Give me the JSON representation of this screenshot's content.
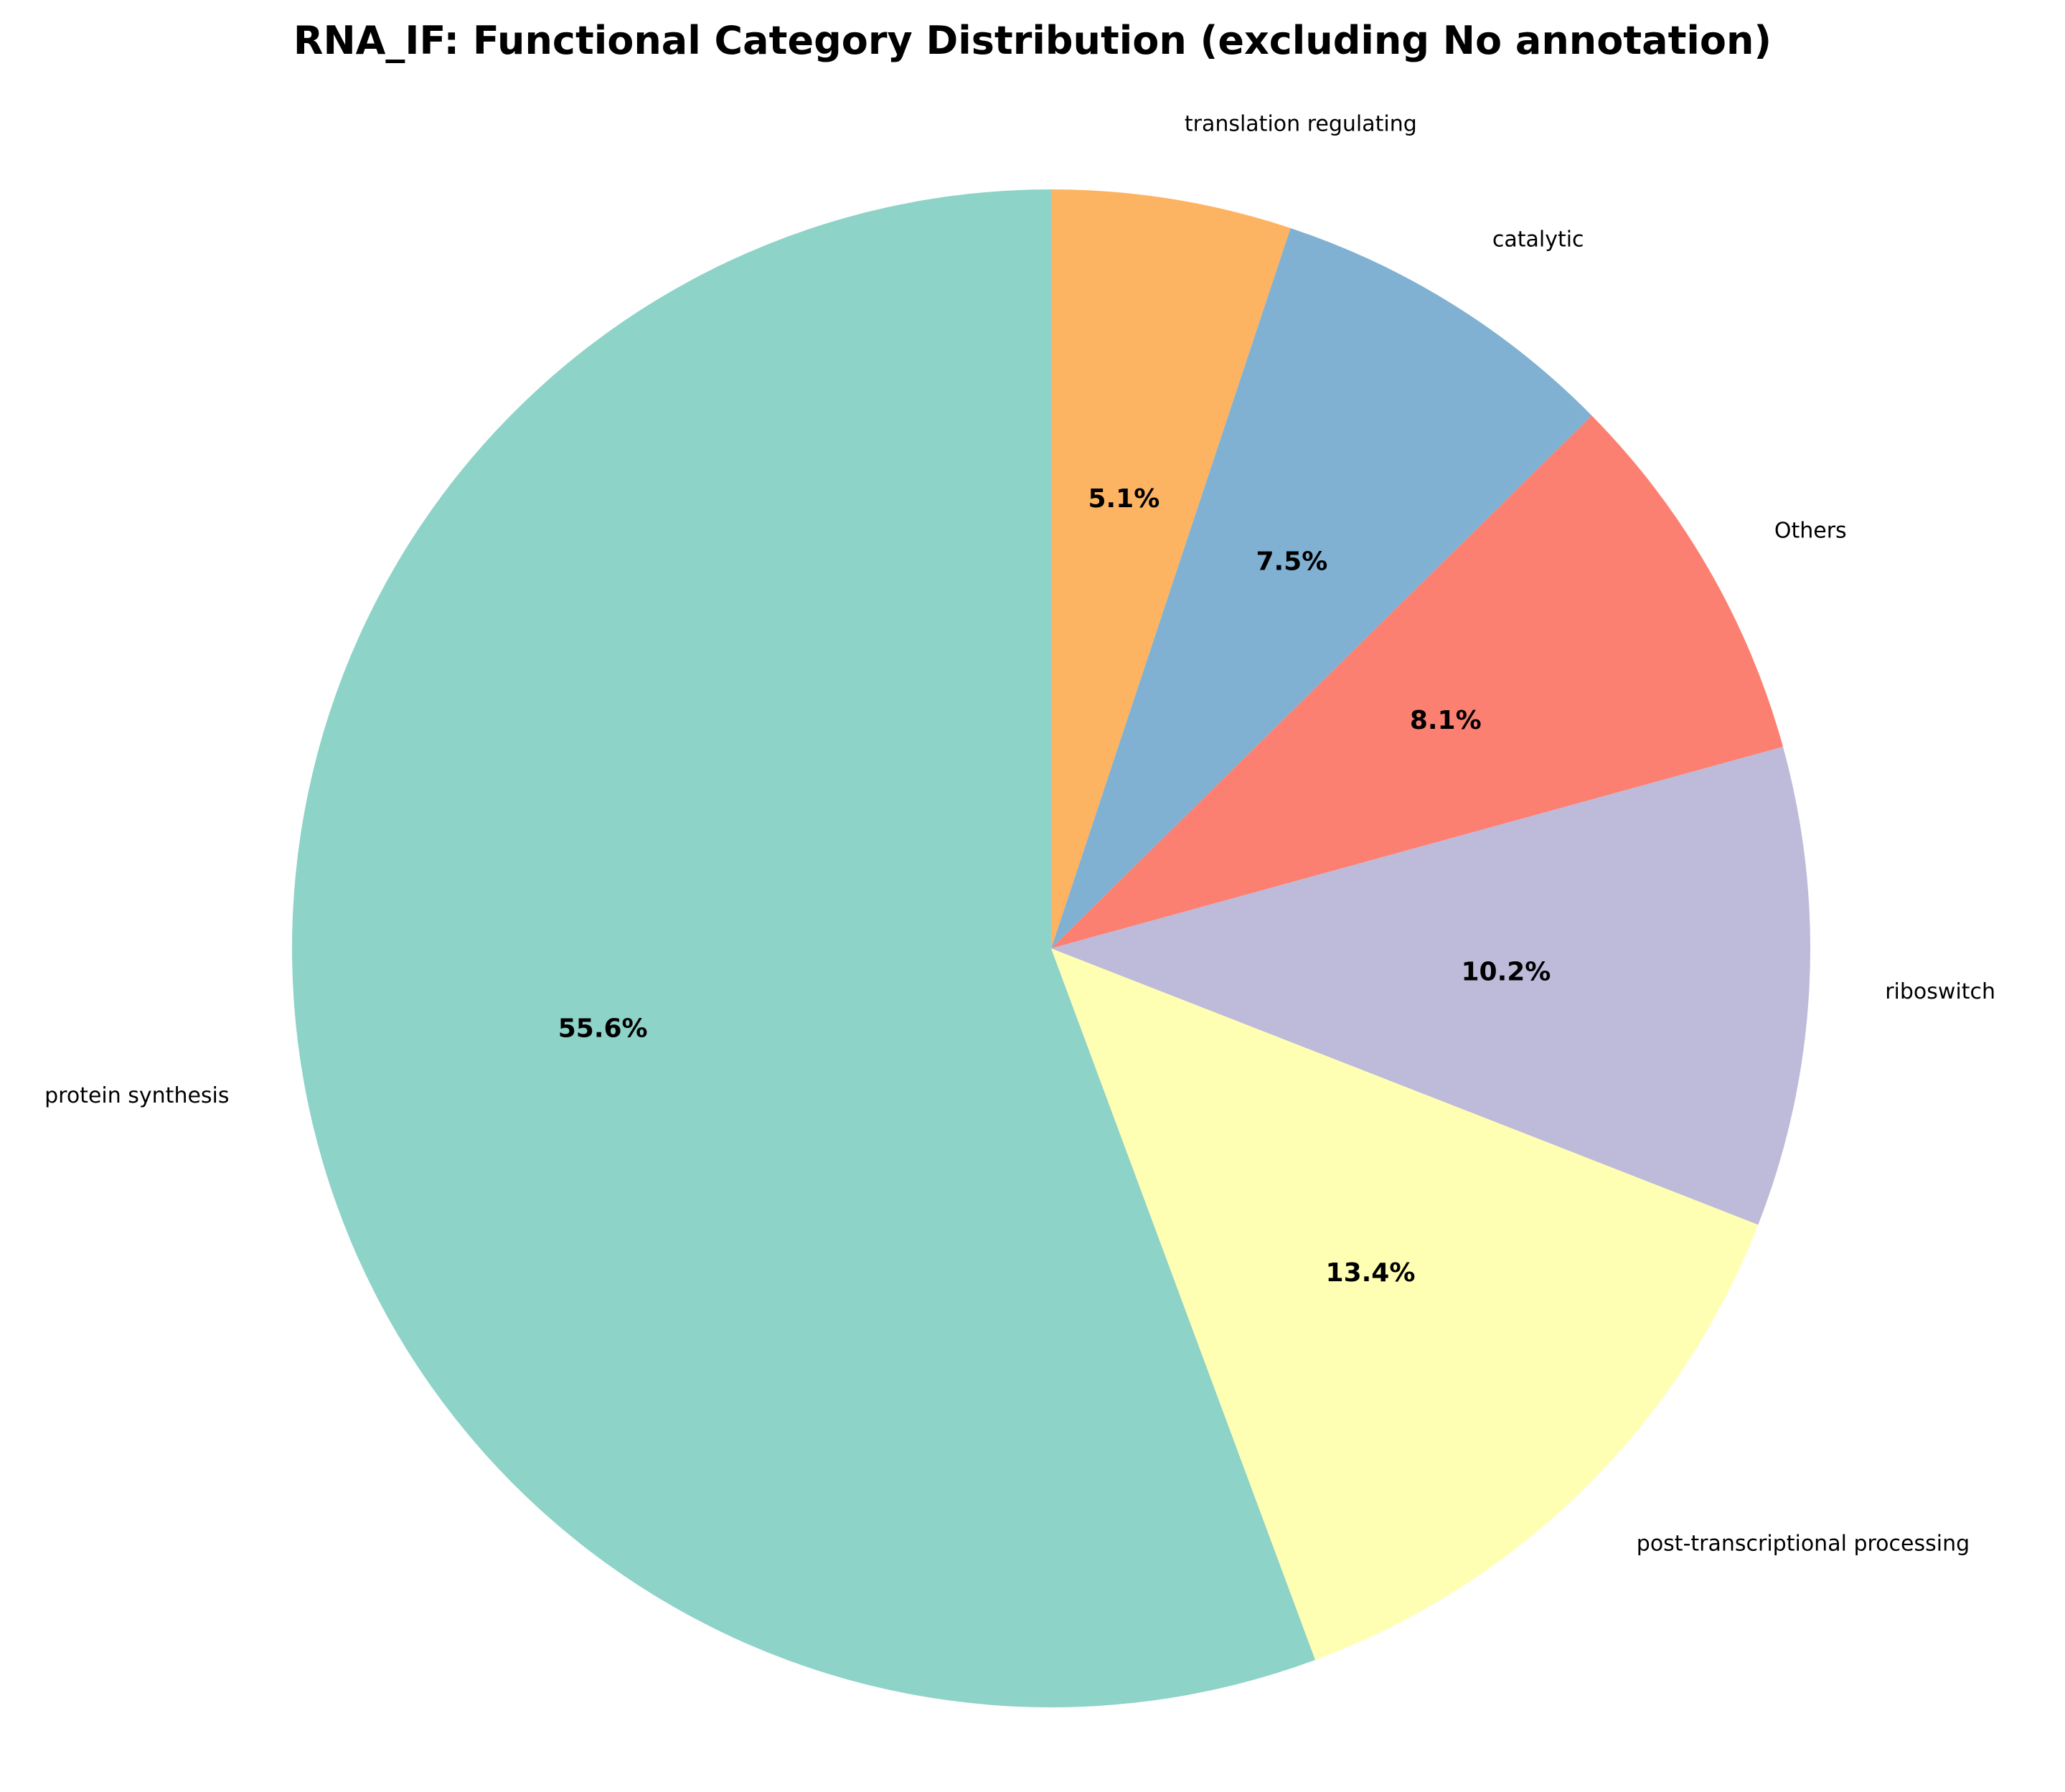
{
  "chart_data": {
    "type": "pie",
    "title": "RNA_IF: Functional Category Distribution (excluding No annotation)",
    "start_angle_deg": 90,
    "direction": "counterclockwise",
    "slices": [
      {
        "label": "protein synthesis",
        "value": 55.6,
        "pct_label": "55.6%",
        "color": "#8dd3c7"
      },
      {
        "label": "post-transcriptional processing",
        "value": 13.4,
        "pct_label": "13.4%",
        "color": "#ffffb3"
      },
      {
        "label": "riboswitch",
        "value": 10.2,
        "pct_label": "10.2%",
        "color": "#bebada"
      },
      {
        "label": "Others",
        "value": 8.1,
        "pct_label": "8.1%",
        "color": "#fb8072"
      },
      {
        "label": "catalytic",
        "value": 7.5,
        "pct_label": "7.5%",
        "color": "#80b1d3"
      },
      {
        "label": "translation regulating",
        "value": 5.1,
        "pct_label": "5.1%",
        "color": "#fdb462"
      }
    ]
  }
}
